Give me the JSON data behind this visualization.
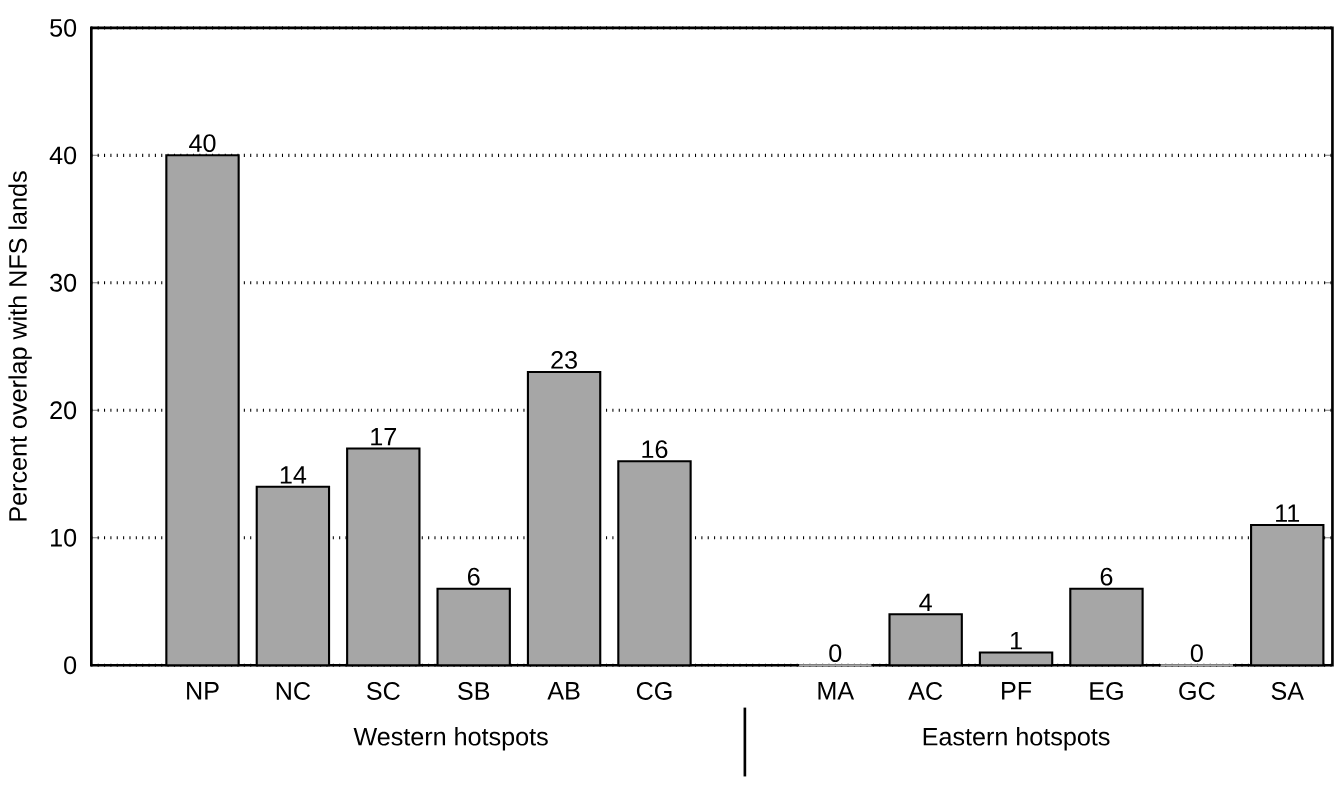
{
  "chart_data": {
    "type": "bar",
    "ylabel": "Percent overlap with NFS lands",
    "categories": [
      "NP",
      "NC",
      "SC",
      "SB",
      "AB",
      "CG",
      null,
      "MA",
      "AC",
      "PF",
      "EG",
      "GC",
      "SA"
    ],
    "values": [
      40,
      14,
      17,
      6,
      23,
      16,
      null,
      0,
      4,
      1,
      6,
      0,
      11
    ],
    "color": "#a6a6a6",
    "ylim": [
      0,
      50
    ],
    "yticks": [
      0,
      10,
      20,
      30,
      40,
      50
    ],
    "grid": "y",
    "data_labels": true,
    "annotations": [
      "Western hotspots",
      "Eastern hotspots"
    ]
  }
}
